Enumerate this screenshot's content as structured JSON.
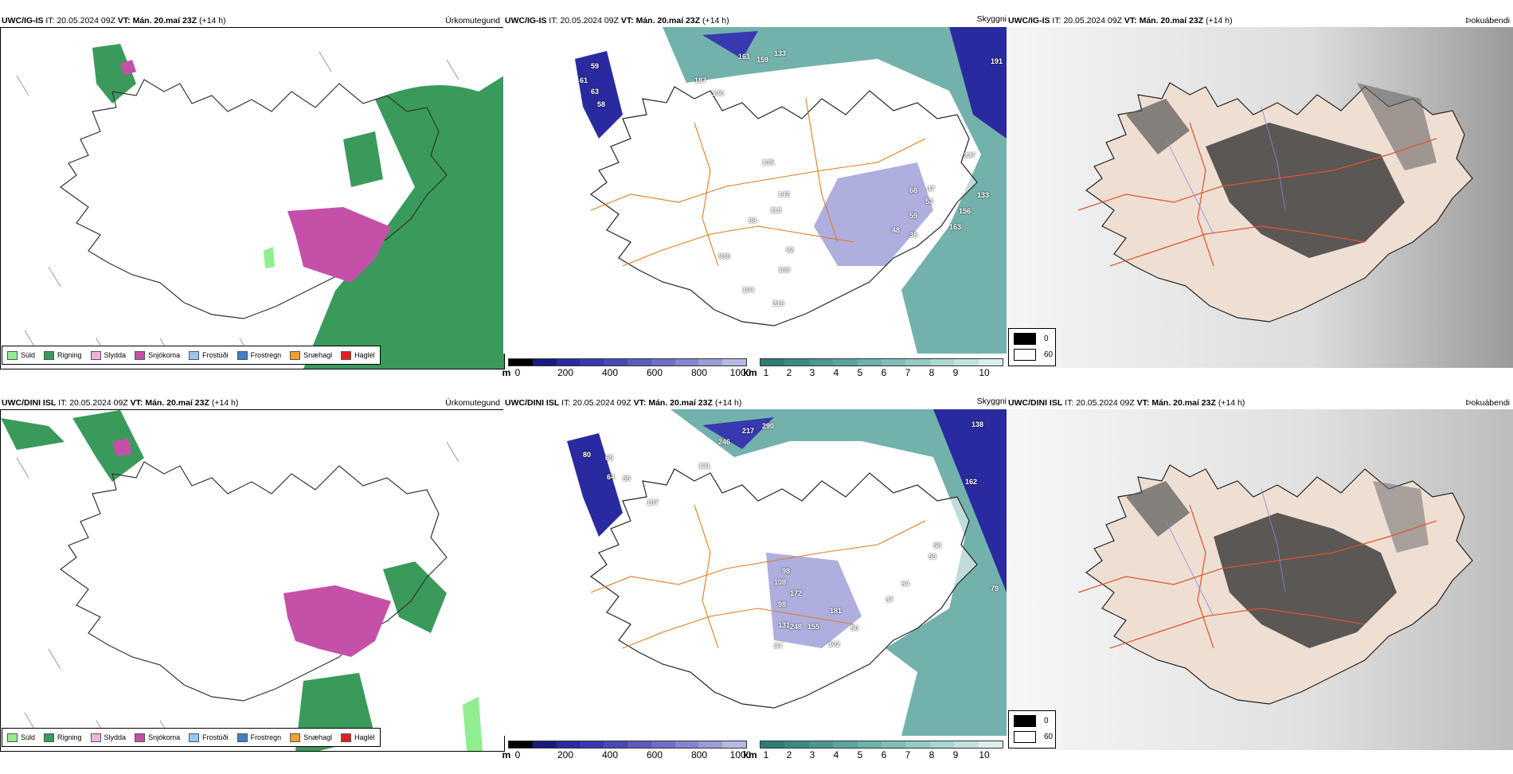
{
  "panels": [
    {
      "model": "UWC/IG-IS",
      "it_label": "IT:",
      "it_value": "20.05.2024 09Z",
      "vt_label": "VT:",
      "vt_value": "Mán. 20.maí 23Z",
      "lead": "(+14 h)",
      "right_title": "Úrkomutegund"
    },
    {
      "model": "UWC/IG-IS",
      "it_label": "IT:",
      "it_value": "20.05.2024 09Z",
      "vt_label": "VT:",
      "vt_value": "Mán. 20.maí 23Z",
      "lead": "(+14 h)",
      "right_title": "Skyggni"
    },
    {
      "model": "UWC/IG-IS",
      "it_label": "IT:",
      "it_value": "20.05.2024 09Z",
      "vt_label": "VT:",
      "vt_value": "Mán. 20.maí 23Z",
      "lead": "(+14 h)",
      "right_title": "Þokuábendi"
    },
    {
      "model": "UWC/DINI ISL",
      "it_label": "IT:",
      "it_value": "20.05.2024 09Z",
      "vt_label": "VT:",
      "vt_value": "Mán. 20.maí 23Z",
      "lead": "(+14 h)",
      "right_title": "Úrkomutegund"
    },
    {
      "model": "UWC/DINI ISL",
      "it_label": "IT:",
      "it_value": "20.05.2024 09Z",
      "vt_label": "VT:",
      "vt_value": "Mán. 20.maí 23Z",
      "lead": "(+14 h)",
      "right_title": "Skyggni"
    },
    {
      "model": "UWC/DINI ISL",
      "it_label": "IT:",
      "it_value": "20.05.2024 09Z",
      "vt_label": "VT:",
      "vt_value": "Mán. 20.maí 23Z",
      "lead": "(+14 h)",
      "right_title": "Þokuábendi"
    }
  ],
  "precip_legend": [
    {
      "label": "Súld",
      "color": "#90ee90"
    },
    {
      "label": "Rigning",
      "color": "#3a9a5c"
    },
    {
      "label": "Slydda",
      "color": "#f2b3d9"
    },
    {
      "label": "Snjókoma",
      "color": "#c550a8"
    },
    {
      "label": "Frostúði",
      "color": "#99c7f0"
    },
    {
      "label": "Frostregn",
      "color": "#3f7fc8"
    },
    {
      "label": "Snæhagl",
      "color": "#f0a030"
    },
    {
      "label": "Haglél",
      "color": "#e02020"
    }
  ],
  "cloud_scale": {
    "unit": "m",
    "ticks": [
      "0",
      "200",
      "400",
      "600",
      "800",
      "1000"
    ],
    "colors": [
      "#000000",
      "#1a1a80",
      "#2a2aa0",
      "#3838b0",
      "#4848b8",
      "#5a5ac0",
      "#6e6ec8",
      "#8484d0",
      "#9c9cd8",
      "#b8b8e4"
    ]
  },
  "vis_scale": {
    "unit": "km",
    "ticks": [
      "1",
      "2",
      "3",
      "4",
      "5",
      "6",
      "7",
      "8",
      "9",
      "10"
    ],
    "colors": [
      "#2e7c76",
      "#3a8a84",
      "#4a9891",
      "#5ba59e",
      "#6db2ab",
      "#80beb8",
      "#94cac4",
      "#aad6d1",
      "#c2e2de",
      "#dcefec"
    ]
  },
  "fog_legend": [
    {
      "label": "0",
      "color": "#000000"
    },
    {
      "label": "60",
      "color": "#ffffff"
    }
  ],
  "vis_values_top": [
    "59",
    "61",
    "63",
    "58",
    "161",
    "159",
    "133",
    "187",
    "130",
    "135",
    "142",
    "113",
    "88",
    "92",
    "108",
    "104",
    "216",
    "930",
    "68",
    "47",
    "53",
    "59",
    "48",
    "38",
    "237",
    "133",
    "156",
    "163",
    "191"
  ],
  "vis_values_bottom": [
    "80",
    "65",
    "64",
    "59",
    "131",
    "107",
    "217",
    "290",
    "246",
    "138",
    "98",
    "108",
    "172",
    "98",
    "131",
    "84",
    "248",
    "155",
    "181",
    "102",
    "50",
    "37",
    "64",
    "58",
    "59",
    "162",
    "79"
  ]
}
